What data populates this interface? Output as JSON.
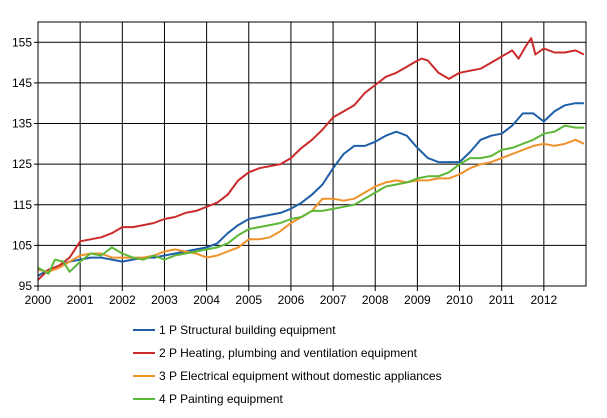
{
  "chart_data": {
    "type": "line",
    "title": "",
    "xlabel": "",
    "ylabel": "",
    "xlim": [
      2000,
      2013
    ],
    "ylim": [
      95,
      160
    ],
    "x_ticks": [
      "2000",
      "2001",
      "2002",
      "2003",
      "2004",
      "2005",
      "2006",
      "2007",
      "2008",
      "2009",
      "2010",
      "2011",
      "2012"
    ],
    "y_ticks": [
      "95",
      "105",
      "115",
      "125",
      "135",
      "145",
      "155"
    ],
    "grid": "horizontal and vertical",
    "legend_position": "bottom",
    "series": [
      {
        "name": "1 P Structural building equipment",
        "color": "#1f5fa8",
        "points": [
          [
            2000,
            97.5
          ],
          [
            2000.25,
            99
          ],
          [
            2000.5,
            100
          ],
          [
            2000.75,
            101
          ],
          [
            2001,
            101.5
          ],
          [
            2001.25,
            102
          ],
          [
            2001.5,
            102
          ],
          [
            2001.75,
            101.5
          ],
          [
            2002,
            101
          ],
          [
            2002.25,
            101.5
          ],
          [
            2002.5,
            102
          ],
          [
            2002.75,
            102
          ],
          [
            2003,
            102.5
          ],
          [
            2003.25,
            103
          ],
          [
            2003.5,
            103.5
          ],
          [
            2003.75,
            104
          ],
          [
            2004,
            104.5
          ],
          [
            2004.25,
            105.5
          ],
          [
            2004.5,
            108
          ],
          [
            2004.75,
            110
          ],
          [
            2005,
            111.5
          ],
          [
            2005.25,
            112
          ],
          [
            2005.5,
            112.5
          ],
          [
            2005.75,
            113
          ],
          [
            2006,
            114
          ],
          [
            2006.25,
            115.5
          ],
          [
            2006.5,
            117.5
          ],
          [
            2006.75,
            120
          ],
          [
            2007,
            124
          ],
          [
            2007.25,
            127.5
          ],
          [
            2007.5,
            129.5
          ],
          [
            2007.75,
            129.5
          ],
          [
            2008,
            130.5
          ],
          [
            2008.25,
            132
          ],
          [
            2008.5,
            133
          ],
          [
            2008.75,
            132
          ],
          [
            2009,
            129
          ],
          [
            2009.25,
            126.5
          ],
          [
            2009.5,
            125.5
          ],
          [
            2009.75,
            125.5
          ],
          [
            2010,
            125.5
          ],
          [
            2010.25,
            128
          ],
          [
            2010.5,
            131
          ],
          [
            2010.75,
            132
          ],
          [
            2011,
            132.5
          ],
          [
            2011.25,
            134.5
          ],
          [
            2011.5,
            137.5
          ],
          [
            2011.75,
            137.5
          ],
          [
            2012,
            135.5
          ],
          [
            2012.25,
            138
          ],
          [
            2012.5,
            139.5
          ],
          [
            2012.75,
            140
          ],
          [
            2012.95,
            140
          ]
        ]
      },
      {
        "name": "2 P Heating, plumbing and ventilation equipment",
        "color": "#cc2b2b",
        "points": [
          [
            2000,
            96.5
          ],
          [
            2000.25,
            99
          ],
          [
            2000.5,
            100
          ],
          [
            2000.75,
            102
          ],
          [
            2001,
            106
          ],
          [
            2001.25,
            106.5
          ],
          [
            2001.5,
            107
          ],
          [
            2001.75,
            108
          ],
          [
            2002,
            109.5
          ],
          [
            2002.25,
            109.5
          ],
          [
            2002.5,
            110
          ],
          [
            2002.75,
            110.5
          ],
          [
            2003,
            111.5
          ],
          [
            2003.25,
            112
          ],
          [
            2003.5,
            113
          ],
          [
            2003.75,
            113.5
          ],
          [
            2004,
            114.5
          ],
          [
            2004.25,
            115.5
          ],
          [
            2004.5,
            117.5
          ],
          [
            2004.75,
            121
          ],
          [
            2005,
            123
          ],
          [
            2005.25,
            124
          ],
          [
            2005.5,
            124.5
          ],
          [
            2005.75,
            125
          ],
          [
            2006,
            126.5
          ],
          [
            2006.25,
            129
          ],
          [
            2006.5,
            131
          ],
          [
            2006.75,
            133.5
          ],
          [
            2007,
            136.5
          ],
          [
            2007.25,
            138
          ],
          [
            2007.5,
            139.5
          ],
          [
            2007.75,
            142.5
          ],
          [
            2008,
            144.5
          ],
          [
            2008.25,
            146.5
          ],
          [
            2008.5,
            147.5
          ],
          [
            2008.75,
            149
          ],
          [
            2009,
            150.5
          ],
          [
            2009.1,
            151
          ],
          [
            2009.25,
            150.5
          ],
          [
            2009.5,
            147.5
          ],
          [
            2009.75,
            146
          ],
          [
            2010,
            147.5
          ],
          [
            2010.25,
            148
          ],
          [
            2010.5,
            148.5
          ],
          [
            2010.75,
            150
          ],
          [
            2011,
            151.5
          ],
          [
            2011.25,
            153
          ],
          [
            2011.4,
            151
          ],
          [
            2011.6,
            154.5
          ],
          [
            2011.7,
            156
          ],
          [
            2011.8,
            152
          ],
          [
            2012,
            153.5
          ],
          [
            2012.25,
            152.5
          ],
          [
            2012.5,
            152.5
          ],
          [
            2012.75,
            153
          ],
          [
            2012.95,
            152
          ]
        ]
      },
      {
        "name": "3 P Electrical equipment without domestic appliances",
        "color": "#f0922b",
        "points": [
          [
            2000,
            99
          ],
          [
            2000.25,
            98.5
          ],
          [
            2000.5,
            99.5
          ],
          [
            2000.75,
            101
          ],
          [
            2001,
            102.5
          ],
          [
            2001.25,
            103
          ],
          [
            2001.5,
            103
          ],
          [
            2001.75,
            102
          ],
          [
            2002,
            102
          ],
          [
            2002.25,
            102
          ],
          [
            2002.5,
            102
          ],
          [
            2002.75,
            102.5
          ],
          [
            2003,
            103.5
          ],
          [
            2003.25,
            104
          ],
          [
            2003.5,
            103.5
          ],
          [
            2003.75,
            103
          ],
          [
            2004,
            102
          ],
          [
            2004.25,
            102.5
          ],
          [
            2004.5,
            103.5
          ],
          [
            2004.75,
            104.5
          ],
          [
            2005,
            106.5
          ],
          [
            2005.25,
            106.5
          ],
          [
            2005.5,
            107
          ],
          [
            2005.75,
            108.5
          ],
          [
            2006,
            110.5
          ],
          [
            2006.25,
            112
          ],
          [
            2006.5,
            113.5
          ],
          [
            2006.75,
            116.5
          ],
          [
            2007,
            116.5
          ],
          [
            2007.25,
            116
          ],
          [
            2007.5,
            116.5
          ],
          [
            2007.75,
            118
          ],
          [
            2008,
            119.5
          ],
          [
            2008.25,
            120.5
          ],
          [
            2008.5,
            121
          ],
          [
            2008.75,
            120.5
          ],
          [
            2009,
            121
          ],
          [
            2009.25,
            121
          ],
          [
            2009.5,
            121.5
          ],
          [
            2009.75,
            121.5
          ],
          [
            2010,
            122.5
          ],
          [
            2010.25,
            124
          ],
          [
            2010.5,
            125
          ],
          [
            2010.75,
            125.5
          ],
          [
            2011,
            126.5
          ],
          [
            2011.25,
            127.5
          ],
          [
            2011.5,
            128.5
          ],
          [
            2011.75,
            129.5
          ],
          [
            2012,
            130
          ],
          [
            2012.25,
            129.5
          ],
          [
            2012.5,
            130
          ],
          [
            2012.75,
            131
          ],
          [
            2012.95,
            130
          ]
        ]
      },
      {
        "name": "4 P Painting equipment",
        "color": "#5cb837",
        "points": [
          [
            2000,
            99.5
          ],
          [
            2000.25,
            98
          ],
          [
            2000.4,
            101.5
          ],
          [
            2000.6,
            101
          ],
          [
            2000.75,
            98.5
          ],
          [
            2001,
            101
          ],
          [
            2001.25,
            103
          ],
          [
            2001.5,
            102.5
          ],
          [
            2001.75,
            104.5
          ],
          [
            2002,
            103
          ],
          [
            2002.25,
            102
          ],
          [
            2002.5,
            101.5
          ],
          [
            2002.75,
            102.5
          ],
          [
            2003,
            101.5
          ],
          [
            2003.25,
            102.5
          ],
          [
            2003.5,
            103
          ],
          [
            2003.75,
            103.5
          ],
          [
            2004,
            104
          ],
          [
            2004.25,
            104.5
          ],
          [
            2004.5,
            105.5
          ],
          [
            2004.75,
            107.5
          ],
          [
            2005,
            109
          ],
          [
            2005.25,
            109.5
          ],
          [
            2005.5,
            110
          ],
          [
            2005.75,
            110.5
          ],
          [
            2006,
            111.5
          ],
          [
            2006.25,
            112
          ],
          [
            2006.5,
            113.5
          ],
          [
            2006.75,
            113.5
          ],
          [
            2007,
            114
          ],
          [
            2007.25,
            114.5
          ],
          [
            2007.5,
            115
          ],
          [
            2007.75,
            116.5
          ],
          [
            2008,
            118
          ],
          [
            2008.25,
            119.5
          ],
          [
            2008.5,
            120
          ],
          [
            2008.75,
            120.5
          ],
          [
            2009,
            121.5
          ],
          [
            2009.25,
            122
          ],
          [
            2009.5,
            122
          ],
          [
            2009.75,
            123
          ],
          [
            2010,
            125
          ],
          [
            2010.25,
            126.5
          ],
          [
            2010.5,
            126.5
          ],
          [
            2010.75,
            127
          ],
          [
            2011,
            128.5
          ],
          [
            2011.25,
            129
          ],
          [
            2011.5,
            130
          ],
          [
            2011.75,
            131
          ],
          [
            2012,
            132.5
          ],
          [
            2012.25,
            133
          ],
          [
            2012.5,
            134.5
          ],
          [
            2012.75,
            134
          ],
          [
            2012.95,
            134
          ]
        ]
      }
    ]
  }
}
